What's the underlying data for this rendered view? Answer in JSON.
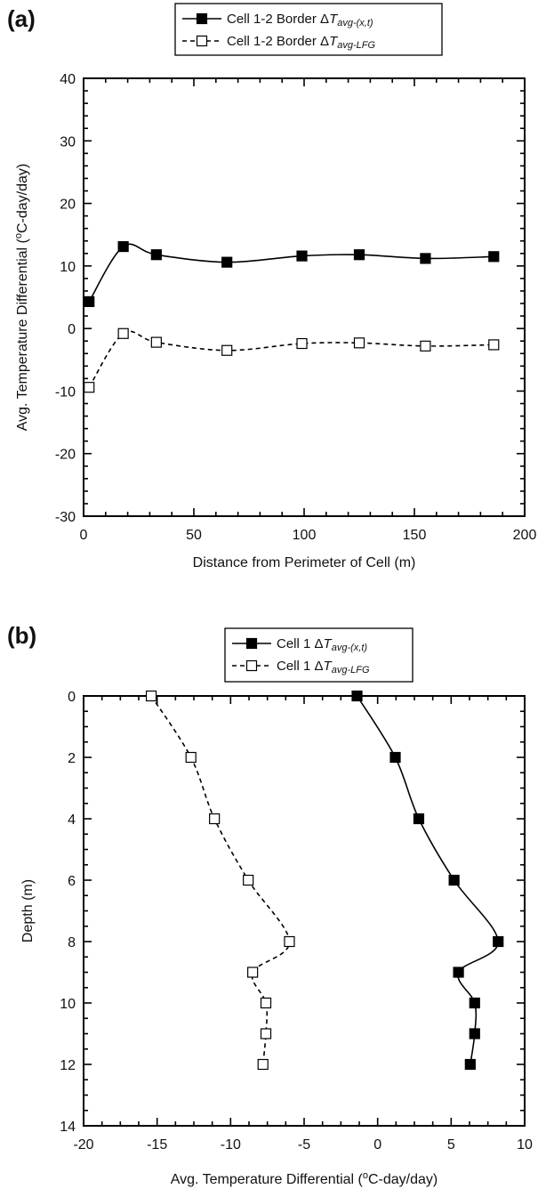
{
  "chart_data": [
    {
      "type": "scatter",
      "panel_label": "(a)",
      "xlabel": "Distance from Perimeter of Cell (m)",
      "ylabel": "Avg. Temperature Differential (°C-day/day)",
      "ylabel_parts": {
        "before": "Avg. Temperature Differential (",
        "sup": "o",
        "after": "C-day/day)"
      },
      "xlim": [
        0,
        200
      ],
      "ylim": [
        -30,
        40
      ],
      "xticks": [
        0,
        50,
        100,
        150,
        200
      ],
      "yticks": [
        -30,
        -20,
        -10,
        0,
        10,
        20,
        30,
        40
      ],
      "grid": false,
      "legend_position": "top-center",
      "series": [
        {
          "name": "Cell 1-2 Border ΔTavg-(x,t)",
          "legend": {
            "prefix": "Cell 1-2 Border Δ",
            "T": "T",
            "sub": "avg-(x,t)"
          },
          "marker": "filled-square",
          "line": "solid",
          "x": [
            2.5,
            18,
            33,
            65,
            99,
            125,
            155,
            186
          ],
          "y": [
            4.3,
            13.1,
            11.8,
            10.6,
            11.6,
            11.8,
            11.2,
            11.5
          ]
        },
        {
          "name": "Cell 1-2 Border ΔTavg-LFG",
          "legend": {
            "prefix": "Cell 1-2 Border Δ",
            "T": "T",
            "sub": "avg-LFG"
          },
          "marker": "open-square",
          "line": "dashed",
          "x": [
            2.5,
            18,
            33,
            65,
            99,
            125,
            155,
            186
          ],
          "y": [
            -9.4,
            -0.8,
            -2.2,
            -3.5,
            -2.4,
            -2.3,
            -2.8,
            -2.6
          ]
        }
      ]
    },
    {
      "type": "line",
      "panel_label": "(b)",
      "xlabel": "Avg. Temperature Differential (°C-day/day)",
      "xlabel_parts": {
        "before": "Avg. Temperature Differential (",
        "sup": "o",
        "after": "C-day/day)"
      },
      "ylabel": "Depth (m)",
      "xlim": [
        -20,
        10
      ],
      "ylim": [
        0,
        14
      ],
      "y_inverted": true,
      "xticks": [
        -20,
        -15,
        -10,
        -5,
        0,
        5,
        10
      ],
      "yticks": [
        0,
        2,
        4,
        6,
        8,
        10,
        12,
        14
      ],
      "grid": false,
      "legend_position": "top-center",
      "series": [
        {
          "name": "Cell 1 ΔTavg-(x,t)",
          "legend": {
            "prefix": "Cell 1 Δ",
            "T": "T",
            "sub": "avg-(x,t)"
          },
          "marker": "filled-square",
          "line": "solid",
          "x": [
            -1.4,
            1.2,
            2.8,
            5.2,
            8.2,
            5.5,
            6.6,
            6.6,
            6.3
          ],
          "y": [
            0,
            2,
            4,
            6,
            8,
            9,
            10,
            11,
            12
          ]
        },
        {
          "name": "Cell 1 ΔTavg-LFG",
          "legend": {
            "prefix": "Cell 1 Δ",
            "T": "T",
            "sub": "avg-LFG"
          },
          "marker": "open-square",
          "line": "dashed",
          "x": [
            -15.4,
            -12.7,
            -11.1,
            -8.8,
            -6.0,
            -8.5,
            -7.6,
            -7.6,
            -7.8
          ],
          "y": [
            0,
            2,
            4,
            6,
            8,
            9,
            10,
            11,
            12
          ]
        }
      ]
    }
  ]
}
